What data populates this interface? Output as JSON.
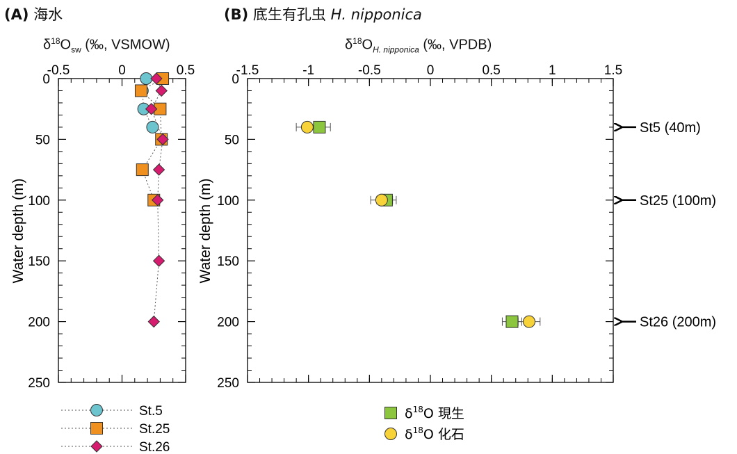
{
  "panelA": {
    "label": "(A)",
    "title": "海水",
    "xaxis": {
      "prefix": "δ",
      "sup": "18",
      "mid": "O",
      "sub": "sw",
      "suffix": "(‰, VSMOW)"
    },
    "ylabel": "Water depth (m)",
    "xlim": [
      -0.5,
      0.5
    ],
    "ylim": [
      0,
      250
    ],
    "xticks": [
      "-0.5",
      "0",
      "0.5"
    ],
    "xtick_values": [
      -0.5,
      0,
      0.5
    ],
    "yticks": [
      "0",
      "50",
      "100",
      "150",
      "200",
      "250"
    ],
    "ytick_values": [
      0,
      50,
      100,
      150,
      200,
      250
    ],
    "legend": [
      "St.5",
      "St.25",
      "St.26"
    ]
  },
  "panelB": {
    "label": "(B)",
    "title_jp": "底生有孔虫",
    "title_species": "H. nipponica",
    "xaxis": {
      "prefix": "δ",
      "sup": "18",
      "mid": "O",
      "sub": "H. nipponica",
      "suffix": "(‰, VPDB)"
    },
    "ylabel": "Water depth (m)",
    "xlim": [
      -1.5,
      1.5
    ],
    "ylim": [
      0,
      250
    ],
    "xticks": [
      "-1.5",
      "-1",
      "-0.5",
      "0",
      "0.5",
      "1",
      "1.5"
    ],
    "xtick_values": [
      -1.5,
      -1,
      -0.5,
      0,
      0.5,
      1,
      1.5
    ],
    "yticks": [
      "0",
      "50",
      "100",
      "150",
      "200",
      "250"
    ],
    "ytick_values": [
      0,
      50,
      100,
      150,
      200,
      250
    ],
    "legend": [
      {
        "prefix": "δ",
        "sup": "18",
        "text": "O 現生",
        "marker": "square"
      },
      {
        "prefix": "δ",
        "sup": "18",
        "text": "O 化石",
        "marker": "circle"
      }
    ],
    "station_labels": [
      "St5 (40m)",
      "St25 (100m)",
      "St26 (200m)"
    ],
    "station_depths": [
      40,
      100,
      200
    ]
  },
  "colors": {
    "st5": "#6cc4cf",
    "st25": "#f0911f",
    "st26": "#d61c6e",
    "recent": "#8cc63f",
    "fossil": "#f7d238",
    "line": "#555555"
  },
  "chart_data": [
    {
      "type": "scatter",
      "panel": "A",
      "xlabel": "δ18Osw (‰, VSMOW)",
      "ylabel": "Water depth (m)",
      "xlim": [
        -0.5,
        0.5
      ],
      "ylim": [
        250,
        0
      ],
      "series": [
        {
          "name": "St.5",
          "marker": "circle",
          "color": "#6cc4cf",
          "points": [
            [
              0.19,
              0
            ],
            [
              0.16,
              10
            ],
            [
              0.17,
              25
            ],
            [
              0.24,
              40
            ]
          ]
        },
        {
          "name": "St.25",
          "marker": "square",
          "color": "#f0911f",
          "points": [
            [
              0.32,
              0
            ],
            [
              0.15,
              10
            ],
            [
              0.3,
              25
            ],
            [
              0.31,
              50
            ],
            [
              0.16,
              75
            ],
            [
              0.25,
              100
            ]
          ]
        },
        {
          "name": "St.26",
          "marker": "diamond",
          "color": "#d61c6e",
          "points": [
            [
              0.27,
              0
            ],
            [
              0.31,
              10
            ],
            [
              0.23,
              25
            ],
            [
              0.32,
              50
            ],
            [
              0.29,
              75
            ],
            [
              0.28,
              100
            ],
            [
              0.29,
              150
            ],
            [
              0.25,
              200
            ]
          ]
        }
      ]
    },
    {
      "type": "scatter",
      "panel": "B",
      "xlabel": "δ18O H. nipponica (‰, VPDB)",
      "ylabel": "Water depth (m)",
      "xlim": [
        -1.5,
        1.5
      ],
      "ylim": [
        250,
        0
      ],
      "series": [
        {
          "name": "δ18O 現生",
          "marker": "square",
          "color": "#8cc63f",
          "points": [
            {
              "x": -0.91,
              "y": 40,
              "err": 0.09
            },
            {
              "x": -0.36,
              "y": 100,
              "err": 0.08
            },
            {
              "x": 0.67,
              "y": 200,
              "err": 0.08
            }
          ]
        },
        {
          "name": "δ18O 化石",
          "marker": "circle",
          "color": "#f7d238",
          "points": [
            {
              "x": -1.01,
              "y": 40,
              "err": 0.09
            },
            {
              "x": -0.4,
              "y": 100,
              "err": 0.09
            },
            {
              "x": 0.81,
              "y": 200,
              "err": 0.09
            }
          ]
        }
      ]
    }
  ]
}
